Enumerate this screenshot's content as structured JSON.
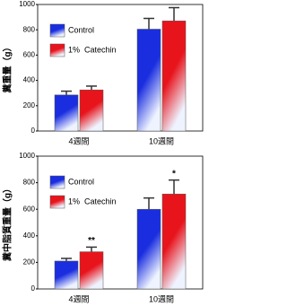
{
  "chart_data": [
    {
      "type": "bar",
      "y_label": "糞重量（g）",
      "categories": [
        "4週間",
        "10週間"
      ],
      "series": [
        {
          "name": "Control",
          "color": "#1a2ee0",
          "values": [
            285,
            805
          ],
          "errors": [
            30,
            85
          ]
        },
        {
          "name": "1%  Catechin",
          "color": "#e8141c",
          "values": [
            325,
            870
          ],
          "errors": [
            30,
            105
          ]
        }
      ],
      "ylim": [
        0,
        1000
      ],
      "yticks": [
        0,
        200,
        400,
        600,
        800,
        1000
      ]
    },
    {
      "type": "bar",
      "y_label": "糞中脂質重量（g）",
      "categories": [
        "4週間",
        "10週間"
      ],
      "series": [
        {
          "name": "Control",
          "color": "#1a2ee0",
          "values": [
            210,
            600
          ],
          "errors": [
            20,
            85
          ]
        },
        {
          "name": "1%  Catechin",
          "color": "#e8141c",
          "values": [
            280,
            715
          ],
          "errors": [
            35,
            105
          ],
          "significance": [
            "**",
            "*"
          ]
        }
      ],
      "ylim": [
        0,
        1000
      ],
      "yticks": [
        0,
        200,
        400,
        600,
        800,
        1000
      ]
    }
  ]
}
